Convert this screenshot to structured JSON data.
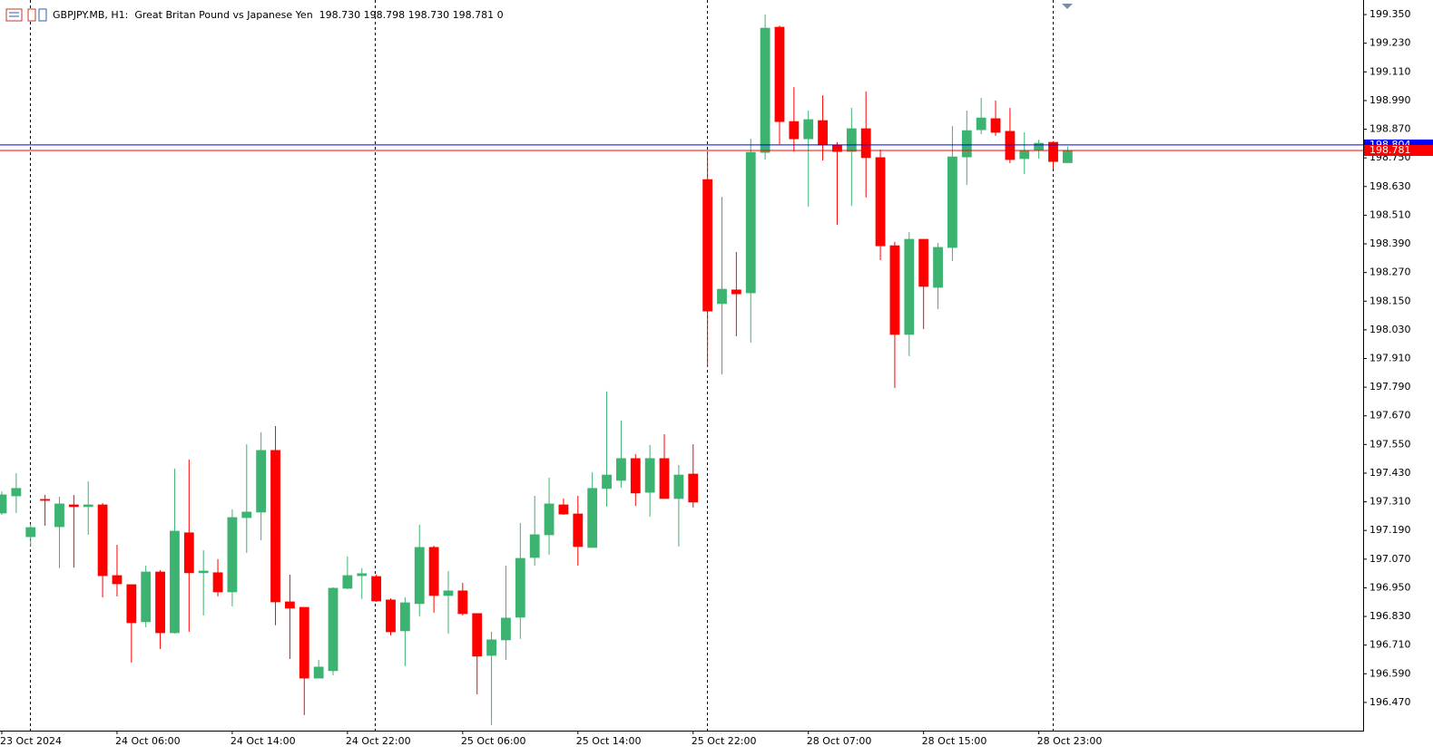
{
  "chart_data": {
    "type": "candlestick",
    "title": "GBPJPY.MB, H1:  Great Britan Pound vs Japanese Yen",
    "header_ohlc": [
      {
        "value": 198.73,
        "label": "198.730"
      },
      {
        "value": 198.798,
        "label": "198.798"
      },
      {
        "value": 198.73,
        "label": "198.730"
      },
      {
        "value": 198.781,
        "label": "198.781"
      }
    ],
    "header_volume": 0,
    "categories": [
      "23 Oct 2024",
      null,
      null,
      null,
      null,
      null,
      null,
      null,
      "24 Oct 06:00",
      null,
      null,
      null,
      null,
      null,
      null,
      null,
      "24 Oct 14:00",
      null,
      null,
      null,
      null,
      null,
      null,
      null,
      "24 Oct 22:00",
      null,
      null,
      null,
      null,
      null,
      null,
      null,
      "25 Oct 06:00",
      null,
      null,
      null,
      null,
      null,
      null,
      null,
      "25 Oct 14:00",
      null,
      null,
      null,
      null,
      null,
      null,
      null,
      "25 Oct 22:00",
      null,
      null,
      null,
      null,
      null,
      null,
      null,
      "28 Oct 07:00",
      null,
      null,
      null,
      null,
      null,
      null,
      null,
      "28 Oct 15:00",
      null,
      null,
      null,
      null,
      null,
      null,
      null,
      "28 Oct 23:00",
      null,
      null
    ],
    "series": [
      {
        "up_color": "#3cb371",
        "down_color": "#ff0000",
        "open": [
          197.263,
          197.335,
          197.164,
          197.32,
          197.206,
          197.297,
          197.29,
          197.297,
          197.001,
          196.963,
          196.808,
          197.016,
          196.762,
          197.18,
          197.013,
          197.013,
          196.933,
          197.244,
          197.267,
          197.525,
          196.891,
          196.868,
          196.572,
          196.603,
          196.948,
          197.001,
          196.997,
          196.899,
          196.77,
          196.884,
          197.119,
          196.918,
          196.937,
          196.842,
          196.667,
          196.732,
          196.827,
          197.077,
          197.172,
          197.297,
          197.259,
          197.119,
          197.366,
          197.4,
          197.491,
          197.35,
          197.491,
          197.324,
          197.426,
          198.659,
          198.14,
          198.197,
          198.185,
          198.773,
          199.297,
          198.902,
          198.83,
          198.906,
          198.804,
          198.777,
          198.872,
          198.751,
          198.382,
          198.011,
          198.409,
          198.208,
          198.375,
          198.754,
          198.868,
          198.914,
          198.861,
          198.747,
          198.781,
          198.815,
          198.73
        ],
        "high": [
          197.354,
          197.43,
          197.218,
          197.339,
          197.331,
          197.339,
          197.396,
          197.305,
          197.13,
          196.963,
          197.043,
          197.024,
          197.449,
          197.487,
          197.107,
          197.07,
          197.278,
          197.551,
          197.601,
          197.627,
          197.005,
          196.868,
          196.648,
          196.952,
          197.081,
          197.032,
          197.005,
          196.906,
          196.91,
          197.214,
          197.126,
          197.02,
          196.971,
          196.842,
          196.766,
          197.043,
          197.221,
          197.335,
          197.411,
          197.324,
          197.335,
          197.434,
          197.772,
          197.65,
          197.51,
          197.548,
          197.593,
          197.464,
          197.551,
          198.777,
          198.587,
          198.356,
          198.83,
          199.35,
          199.304,
          199.046,
          198.948,
          199.012,
          198.815,
          198.959,
          199.028,
          198.785,
          198.398,
          198.439,
          198.409,
          198.394,
          198.883,
          198.948,
          199.001,
          198.99,
          198.959,
          198.857,
          198.826,
          198.819,
          198.798
        ],
        "low": [
          197.255,
          197.263,
          197.123,
          197.21,
          197.032,
          197.035,
          197.172,
          196.91,
          196.914,
          196.637,
          196.785,
          196.694,
          196.758,
          196.766,
          196.834,
          196.914,
          196.872,
          197.096,
          197.149,
          196.793,
          196.652,
          196.417,
          196.572,
          196.584,
          196.944,
          196.903,
          196.891,
          196.751,
          196.622,
          196.831,
          196.846,
          196.758,
          196.834,
          196.504,
          196.375,
          196.648,
          196.736,
          197.043,
          197.089,
          197.255,
          197.043,
          197.119,
          197.29,
          197.369,
          197.293,
          197.248,
          197.324,
          197.123,
          197.286,
          197.874,
          197.844,
          198.003,
          197.976,
          198.743,
          198.807,
          198.777,
          198.546,
          198.739,
          198.47,
          198.549,
          198.584,
          198.322,
          197.787,
          197.92,
          198.033,
          198.117,
          198.318,
          198.637,
          198.849,
          198.842,
          198.728,
          198.682,
          198.747,
          198.705,
          198.73
        ],
        "close": [
          197.339,
          197.366,
          197.202,
          197.316,
          197.301,
          197.29,
          197.297,
          197.001,
          196.967,
          196.804,
          197.016,
          196.762,
          197.187,
          197.013,
          197.02,
          196.933,
          197.244,
          197.267,
          197.525,
          196.891,
          196.865,
          196.572,
          196.618,
          196.948,
          197.001,
          197.009,
          196.895,
          196.766,
          196.887,
          197.119,
          196.918,
          196.937,
          196.842,
          196.664,
          196.732,
          196.823,
          197.073,
          197.172,
          197.301,
          197.259,
          197.123,
          197.366,
          197.422,
          197.491,
          197.347,
          197.491,
          197.324,
          197.422,
          197.309,
          198.109,
          198.2,
          198.181,
          198.773,
          199.293,
          198.902,
          198.83,
          198.91,
          198.804,
          198.777,
          198.872,
          198.751,
          198.382,
          198.011,
          198.409,
          198.212,
          198.375,
          198.754,
          198.864,
          198.917,
          198.857,
          198.743,
          198.781,
          198.811,
          198.735,
          198.781
        ]
      }
    ],
    "ylim": [
      196.352,
      199.411
    ],
    "yticks": [
      {
        "value": 199.35,
        "label": "199.350"
      },
      {
        "value": 199.23,
        "label": "199.230"
      },
      {
        "value": 199.11,
        "label": "199.110"
      },
      {
        "value": 198.99,
        "label": "198.990"
      },
      {
        "value": 198.87,
        "label": "198.870"
      },
      {
        "value": 198.75,
        "label": "198.750"
      },
      {
        "value": 198.63,
        "label": "198.630"
      },
      {
        "value": 198.51,
        "label": "198.510"
      },
      {
        "value": 198.39,
        "label": "198.390"
      },
      {
        "value": 198.27,
        "label": "198.270"
      },
      {
        "value": 198.15,
        "label": "198.150"
      },
      {
        "value": 198.03,
        "label": "198.030"
      },
      {
        "value": 197.91,
        "label": "197.910"
      },
      {
        "value": 197.79,
        "label": "197.790"
      },
      {
        "value": 197.67,
        "label": "197.670"
      },
      {
        "value": 197.55,
        "label": "197.550"
      },
      {
        "value": 197.43,
        "label": "197.430"
      },
      {
        "value": 197.31,
        "label": "197.310"
      },
      {
        "value": 197.19,
        "label": "197.190"
      },
      {
        "value": 197.07,
        "label": "197.070"
      },
      {
        "value": 196.95,
        "label": "196.950"
      },
      {
        "value": 196.83,
        "label": "196.830"
      },
      {
        "value": 196.71,
        "label": "196.710"
      },
      {
        "value": 196.59,
        "label": "196.590"
      },
      {
        "value": 196.47,
        "label": "196.470"
      }
    ],
    "ask_line": {
      "value": 198.804,
      "label": "198.804",
      "color": "#0000ff"
    },
    "bid_line": {
      "value": 198.781,
      "label": "198.781",
      "color": "#ff0000"
    }
  }
}
